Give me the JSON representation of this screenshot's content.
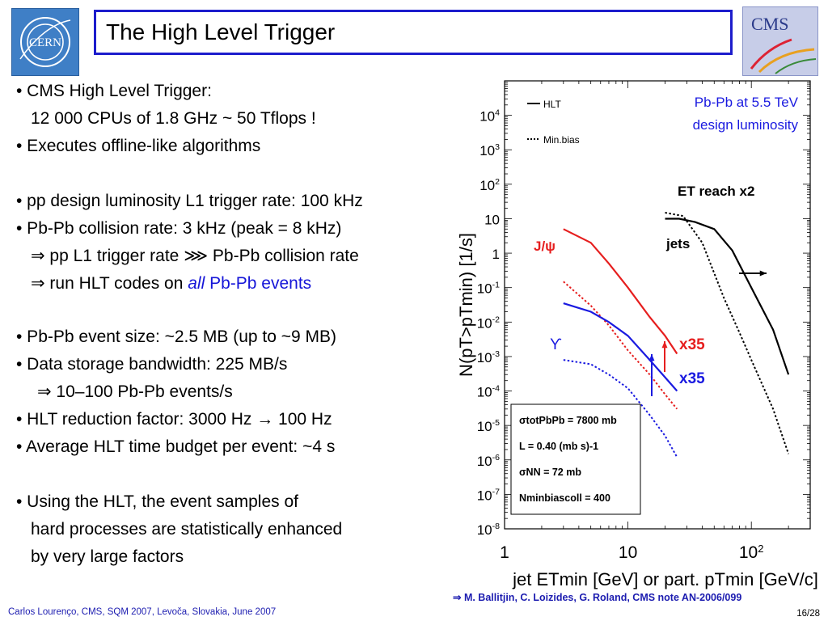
{
  "slide": {
    "title": "The High Level Trigger",
    "cms_logo_text": "CMS",
    "cern_logo_text": "CERN",
    "footer": "Carlos Lourenço, CMS, SQM 2007, Levoča, Slovakia, June 2007",
    "page": "16/28",
    "reference": "⇒ M. Ballitjin, C. Loizides, G. Roland, CMS note AN-2006/099"
  },
  "bullets": [
    {
      "pre": "• CMS High Level Trigger:",
      "em": "",
      "post": ""
    },
    {
      "pre": "12 000 CPUs of 1.8 GHz ~ 50 Tflops !",
      "em": "",
      "post": ""
    },
    {
      "pre": "• Executes offline-like algorithms",
      "em": "",
      "post": ""
    },
    {
      "pre": "• pp design luminosity L1 trigger rate: 100 kHz",
      "em": "",
      "post": ""
    },
    {
      "pre": "• Pb-Pb collision rate: 3 kHz (peak = 8 kHz)",
      "em": "",
      "post": ""
    },
    {
      "pre": "⇒ pp L1 trigger rate ⋙ Pb-Pb collision rate",
      "em": "",
      "post": ""
    },
    {
      "pre": "⇒ run HLT codes on ",
      "em": "all",
      "post": " Pb-Pb events"
    },
    {
      "pre": "• Pb-Pb event size: ~2.5 MB (up to ~9 MB)",
      "em": "",
      "post": ""
    },
    {
      "pre": "• Data storage bandwidth: 225 MB/s",
      "em": "",
      "post": ""
    },
    {
      "pre": "⇒ 10–100 Pb-Pb events/s",
      "em": "",
      "post": ""
    },
    {
      "pre": "• HLT reduction factor: 3000 Hz → 100 Hz",
      "em": "",
      "post": ""
    },
    {
      "pre": "• Average HLT time budget per event: ~4 s",
      "em": "",
      "post": ""
    },
    {
      "pre": "• Using the HLT, the event samples of",
      "em": "",
      "post": ""
    },
    {
      "pre": "hard processes are statistically enhanced",
      "em": "",
      "post": ""
    },
    {
      "pre": "by very large factors",
      "em": "",
      "post": ""
    }
  ],
  "chart_data": {
    "type": "line",
    "xscale": "log",
    "yscale": "log",
    "xlim": [
      1,
      300
    ],
    "ylim": [
      1e-08,
      100000
    ],
    "x_ticks": [
      {
        "v": 1,
        "label": "1",
        "sup": ""
      },
      {
        "v": 10,
        "label": "10",
        "sup": ""
      },
      {
        "v": 100,
        "label": "10",
        "sup": "2"
      }
    ],
    "y_ticks": [
      {
        "v": 10000,
        "label": "10",
        "sup": "4"
      },
      {
        "v": 1000,
        "label": "10",
        "sup": "3"
      },
      {
        "v": 100,
        "label": "10",
        "sup": "2"
      },
      {
        "v": 10,
        "label": "10",
        "sup": ""
      },
      {
        "v": 1,
        "label": "1",
        "sup": ""
      },
      {
        "v": 0.1,
        "label": "10",
        "sup": "-1"
      },
      {
        "v": 0.01,
        "label": "10",
        "sup": "-2"
      },
      {
        "v": 0.001,
        "label": "10",
        "sup": "-3"
      },
      {
        "v": 0.0001,
        "label": "10",
        "sup": "-4"
      },
      {
        "v": 1e-05,
        "label": "10",
        "sup": "-5"
      },
      {
        "v": 1e-06,
        "label": "10",
        "sup": "-6"
      },
      {
        "v": 1e-07,
        "label": "10",
        "sup": "-7"
      },
      {
        "v": 1e-08,
        "label": "10",
        "sup": "-8"
      }
    ],
    "ylabel": "N(pT>pTmin) [1/s]",
    "xlabel": "jet ETmin [GeV] or part. pTmin [GeV/c]",
    "legend": [
      {
        "label": "HLT",
        "style": "solid"
      },
      {
        "label": "Min.bias",
        "style": "dotted"
      }
    ],
    "annotations": {
      "top_right_line1": "Pb-Pb at 5.5 TeV",
      "top_right_line2": "design luminosity",
      "et_reach": "ET reach x2",
      "jets": "jets",
      "jpsi": "J/ψ",
      "upsilon": "ϒ",
      "x35_red": "x35",
      "x35_blue": "x35"
    },
    "info_box": [
      "σtotPbPb = 7800 mb",
      "L = 0.40 (mb s)-1",
      "σNN = 72 mb",
      "Nminbiascoll = 400"
    ],
    "series": [
      {
        "name": "HLT",
        "group": "jets",
        "style": "solid",
        "color": "#000000",
        "x": [
          20,
          26,
          35,
          50,
          70,
          100,
          150,
          200
        ],
        "y": [
          10,
          10,
          8,
          5,
          1.2,
          0.1,
          0.006,
          0.0003
        ]
      },
      {
        "name": "Min.bias",
        "group": "jets",
        "style": "dotted",
        "color": "#000000",
        "x": [
          20,
          28,
          40,
          60,
          80,
          100,
          150,
          200
        ],
        "y": [
          15,
          12,
          2,
          0.05,
          0.005,
          0.0008,
          3e-05,
          1.5e-06
        ]
      },
      {
        "name": "HLT",
        "group": "J/ψ",
        "style": "solid",
        "color": "#e61e1e",
        "x": [
          3,
          5,
          7,
          10,
          15,
          20,
          25
        ],
        "y": [
          5,
          2,
          0.5,
          0.1,
          0.014,
          0.004,
          0.0012
        ]
      },
      {
        "name": "Min.bias",
        "group": "J/ψ",
        "style": "dotted",
        "color": "#e61e1e",
        "x": [
          3,
          5,
          7,
          10,
          15,
          20,
          25
        ],
        "y": [
          0.15,
          0.03,
          0.008,
          0.0015,
          0.0003,
          8e-05,
          3e-05
        ]
      },
      {
        "name": "HLT",
        "group": "ϒ",
        "style": "solid",
        "color": "#1a1ae0",
        "x": [
          3,
          5,
          7,
          10,
          15,
          20,
          25
        ],
        "y": [
          0.035,
          0.02,
          0.01,
          0.004,
          0.0008,
          0.00025,
          0.0001
        ]
      },
      {
        "name": "Min.bias",
        "group": "ϒ",
        "style": "dotted",
        "color": "#1a1ae0",
        "x": [
          3,
          5,
          7,
          10,
          15,
          20,
          25
        ],
        "y": [
          0.0008,
          0.0006,
          0.0003,
          0.00012,
          2e-05,
          5e-06,
          1.2e-06
        ]
      }
    ]
  }
}
